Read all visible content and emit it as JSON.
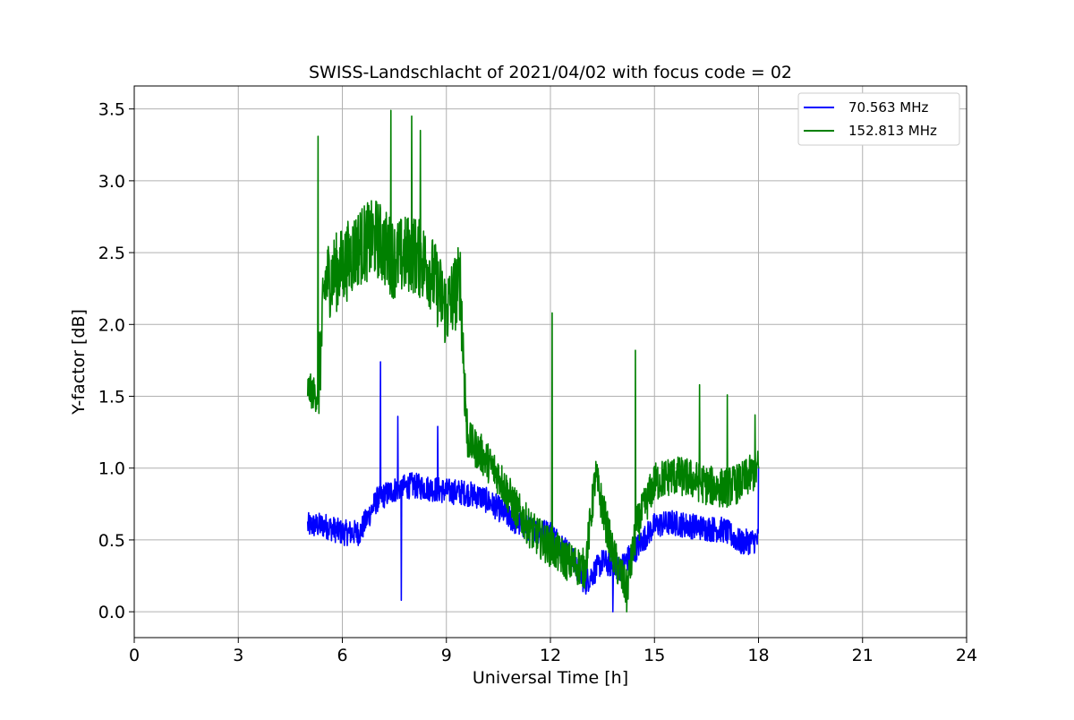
{
  "chart_data": {
    "type": "line",
    "title": "SWISS-Landschlacht of 2021/04/02 with focus code = 02",
    "xlabel": "Universal Time [h]",
    "ylabel": "Y-factor [dB]",
    "xlim": [
      0,
      24
    ],
    "ylim": [
      -0.18,
      3.66
    ],
    "xticks": [
      0,
      3,
      6,
      9,
      12,
      15,
      18,
      21,
      24
    ],
    "xtick_labels": [
      "0",
      "3",
      "6",
      "9",
      "12",
      "15",
      "18",
      "21",
      "24"
    ],
    "yticks": [
      0.0,
      0.5,
      1.0,
      1.5,
      2.0,
      2.5,
      3.0,
      3.5
    ],
    "ytick_labels": [
      "0.0",
      "0.5",
      "1.0",
      "1.5",
      "2.0",
      "2.5",
      "3.0",
      "3.5"
    ],
    "grid": true,
    "legend_position": "top-right",
    "series": [
      {
        "name": "70.563 MHz",
        "color": "#0000ff",
        "x": [
          5.0,
          5.5,
          6.0,
          6.5,
          7.0,
          7.5,
          8.0,
          8.5,
          9.0,
          9.5,
          10.0,
          10.5,
          11.0,
          11.5,
          12.0,
          12.5,
          13.0,
          13.5,
          14.0,
          14.5,
          15.0,
          15.5,
          16.0,
          16.5,
          17.0,
          17.5,
          18.0
        ],
        "y": [
          0.6,
          0.6,
          0.55,
          0.55,
          0.78,
          0.85,
          0.88,
          0.86,
          0.84,
          0.83,
          0.8,
          0.72,
          0.62,
          0.57,
          0.55,
          0.42,
          0.2,
          0.35,
          0.3,
          0.45,
          0.6,
          0.62,
          0.6,
          0.58,
          0.57,
          0.48,
          0.5
        ],
        "spikes": [
          [
            7.1,
            1.74
          ],
          [
            7.6,
            1.36
          ],
          [
            7.7,
            0.08
          ],
          [
            8.75,
            1.29
          ],
          [
            18.0,
            1.01
          ],
          [
            13.8,
            0.0
          ]
        ]
      },
      {
        "name": "152.813 MHz",
        "color": "#008000",
        "x": [
          5.0,
          5.3,
          5.5,
          6.0,
          6.5,
          7.0,
          7.5,
          8.0,
          8.5,
          9.0,
          9.4,
          9.6,
          10.0,
          10.5,
          11.0,
          11.5,
          12.0,
          12.5,
          13.0,
          13.3,
          13.8,
          14.2,
          14.5,
          15.0,
          15.5,
          16.0,
          16.5,
          17.0,
          17.5,
          18.0
        ],
        "y": [
          1.55,
          1.5,
          2.3,
          2.4,
          2.55,
          2.6,
          2.45,
          2.5,
          2.4,
          2.1,
          2.3,
          1.2,
          1.1,
          0.95,
          0.72,
          0.55,
          0.45,
          0.35,
          0.3,
          0.95,
          0.4,
          0.15,
          0.6,
          0.9,
          0.95,
          0.93,
          0.88,
          0.86,
          0.9,
          1.0
        ],
        "spikes": [
          [
            5.3,
            3.31
          ],
          [
            7.4,
            3.49
          ],
          [
            8.0,
            3.45
          ],
          [
            8.25,
            3.35
          ],
          [
            12.05,
            2.08
          ],
          [
            14.45,
            1.82
          ],
          [
            16.3,
            1.58
          ],
          [
            17.1,
            1.51
          ],
          [
            17.9,
            1.37
          ],
          [
            14.2,
            0.0
          ]
        ]
      }
    ]
  }
}
